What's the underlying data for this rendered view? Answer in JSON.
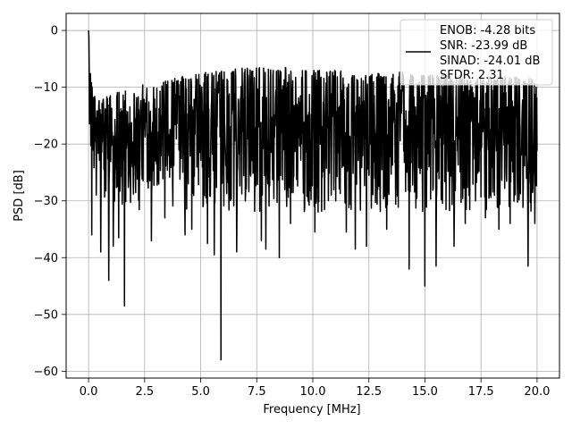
{
  "chart_data": {
    "type": "line",
    "title": "",
    "xlabel": "Frequency [MHz]",
    "ylabel": "PSD [dB]",
    "xlim": [
      -1.0,
      21.0
    ],
    "ylim": [
      -61.2,
      3.0
    ],
    "xticks": [
      0.0,
      2.5,
      5.0,
      7.5,
      10.0,
      12.5,
      15.0,
      17.5,
      20.0
    ],
    "xtick_labels": [
      "0.0",
      "2.5",
      "5.0",
      "7.5",
      "10.0",
      "12.5",
      "15.0",
      "17.5",
      "20.0"
    ],
    "yticks": [
      0,
      -10,
      -20,
      -30,
      -40,
      -50,
      -60
    ],
    "ytick_labels": [
      "0",
      "−10",
      "−20",
      "−30",
      "−40",
      "−50",
      "−60"
    ],
    "grid": true,
    "legend_position": "top-right",
    "legend": [
      "ENOB: -4.28 bits",
      "SNR: -23.99 dB",
      "SINAD: -24.01 dB",
      "SFDR: 2.31"
    ],
    "series": [
      {
        "color": "#000000",
        "x_range": [
          0.0,
          20.0
        ],
        "envelope_x": [
          0.0,
          0.05,
          0.1,
          0.2,
          0.3,
          0.5,
          0.7,
          1.0,
          1.5,
          2.0,
          2.5,
          3.0,
          4.0,
          5.0,
          6.0,
          7.0,
          8.0,
          9.0,
          10.0,
          11.0,
          12.0,
          13.0,
          14.0,
          15.0,
          16.0,
          17.0,
          18.0,
          19.0,
          20.0
        ],
        "upper_envelope_db": [
          0.0,
          -3.5,
          -8.0,
          -10.5,
          -11.5,
          -11.5,
          -11.0,
          -10.5,
          -10.5,
          -9.5,
          -9.5,
          -9.5,
          -8.0,
          -7.5,
          -7.0,
          -6.5,
          -6.5,
          -6.5,
          -7.0,
          -7.0,
          -7.5,
          -7.5,
          -7.0,
          -7.5,
          -7.5,
          -8.0,
          -8.0,
          -8.0,
          -8.5
        ],
        "lower_envelope_db": [
          -15.0,
          -20.0,
          -22.0,
          -24.0,
          -25.0,
          -26.0,
          -27.0,
          -27.5,
          -28.0,
          -28.0,
          -28.0,
          -28.0,
          -28.0,
          -28.0,
          -28.0,
          -28.0,
          -28.0,
          -28.0,
          -28.0,
          -28.0,
          -28.0,
          -28.0,
          -28.0,
          -28.0,
          -28.0,
          -28.0,
          -28.0,
          -28.0,
          -28.0
        ],
        "notable_dips": [
          {
            "x": 0.15,
            "y": -36.0
          },
          {
            "x": 0.35,
            "y": -29.0
          },
          {
            "x": 0.55,
            "y": -39.0
          },
          {
            "x": 0.9,
            "y": -44.0
          },
          {
            "x": 1.1,
            "y": -38.0
          },
          {
            "x": 1.35,
            "y": -36.5
          },
          {
            "x": 1.6,
            "y": -48.5
          },
          {
            "x": 2.8,
            "y": -37.0
          },
          {
            "x": 3.4,
            "y": -33.0
          },
          {
            "x": 4.3,
            "y": -36.0
          },
          {
            "x": 4.6,
            "y": -35.0
          },
          {
            "x": 5.3,
            "y": -37.5
          },
          {
            "x": 5.6,
            "y": -39.5
          },
          {
            "x": 5.9,
            "y": -58.0
          },
          {
            "x": 6.6,
            "y": -39.0
          },
          {
            "x": 7.7,
            "y": -37.0
          },
          {
            "x": 7.9,
            "y": -38.5
          },
          {
            "x": 8.5,
            "y": -40.0
          },
          {
            "x": 9.0,
            "y": -34.0
          },
          {
            "x": 10.1,
            "y": -35.5
          },
          {
            "x": 11.5,
            "y": -35.5
          },
          {
            "x": 11.9,
            "y": -38.5
          },
          {
            "x": 12.4,
            "y": -38.0
          },
          {
            "x": 13.3,
            "y": -35.0
          },
          {
            "x": 14.3,
            "y": -42.0
          },
          {
            "x": 15.0,
            "y": -45.0
          },
          {
            "x": 15.5,
            "y": -41.5
          },
          {
            "x": 16.3,
            "y": -38.0
          },
          {
            "x": 16.8,
            "y": -34.0
          },
          {
            "x": 17.7,
            "y": -33.0
          },
          {
            "x": 18.3,
            "y": -35.0
          },
          {
            "x": 18.8,
            "y": -34.0
          },
          {
            "x": 19.6,
            "y": -41.5
          },
          {
            "x": 19.9,
            "y": -34.0
          }
        ]
      }
    ]
  }
}
